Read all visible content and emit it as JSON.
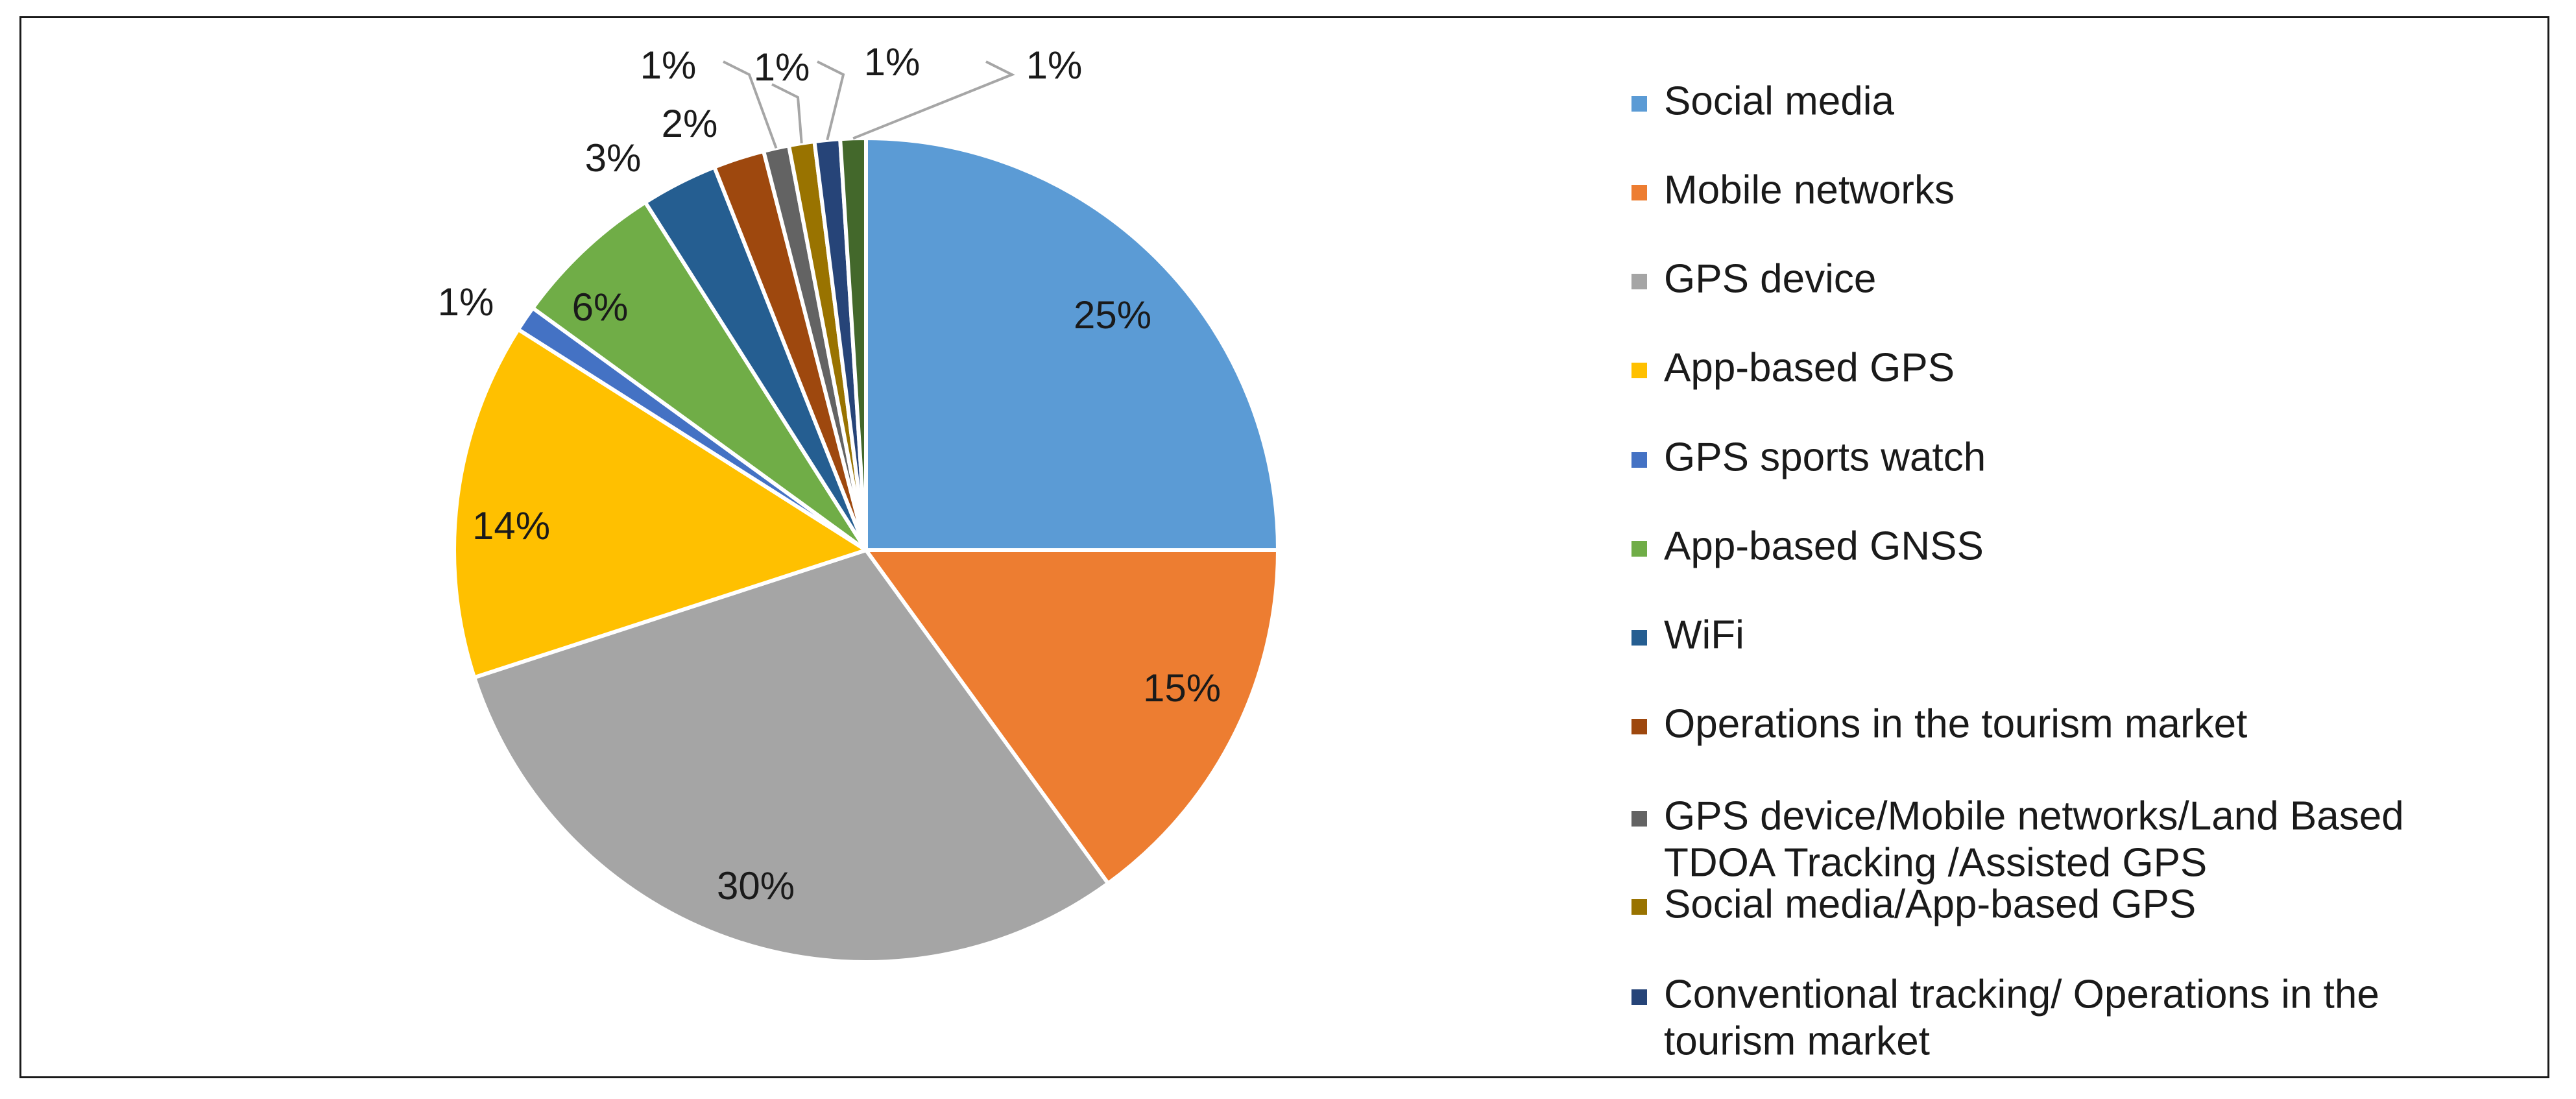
{
  "chart_data": {
    "type": "pie",
    "title": "",
    "slices": [
      {
        "label": "Social media",
        "value": 25,
        "display": "25%",
        "color": "#5B9BD5",
        "label_lines": [
          "Social media"
        ]
      },
      {
        "label": "Mobile networks",
        "value": 15,
        "display": "15%",
        "color": "#ED7D31",
        "label_lines": [
          "Mobile networks"
        ]
      },
      {
        "label": "GPS device",
        "value": 30,
        "display": "30%",
        "color": "#A5A5A5",
        "label_lines": [
          "GPS device"
        ]
      },
      {
        "label": "App-based GPS",
        "value": 14,
        "display": "14%",
        "color": "#FFC000",
        "label_lines": [
          "App-based GPS"
        ]
      },
      {
        "label": "GPS sports watch",
        "value": 1,
        "display": "1%",
        "color": "#4472C4",
        "label_lines": [
          "GPS sports watch"
        ]
      },
      {
        "label": "App-based GNSS",
        "value": 6,
        "display": "6%",
        "color": "#70AD47",
        "label_lines": [
          "App-based GNSS"
        ]
      },
      {
        "label": " WiFi",
        "value": 3,
        "display": "3%",
        "color": "#255E91",
        "label_lines": [
          " WiFi"
        ]
      },
      {
        "label": "Operations in the tourism market",
        "value": 2,
        "display": "2%",
        "color": "#9E480E",
        "label_lines": [
          "Operations in the tourism market"
        ]
      },
      {
        "label": "GPS device/Mobile networks/Land Based TDOA Tracking /Assisted GPS",
        "value": 1,
        "display": "1%",
        "color": "#636363",
        "label_lines": [
          "GPS device/Mobile networks/Land Based",
          "TDOA Tracking /Assisted GPS"
        ]
      },
      {
        "label": "Social media/App-based GPS",
        "value": 1,
        "display": "1%",
        "color": "#997300",
        "label_lines": [
          "Social media/App-based GPS"
        ]
      },
      {
        "label": "Conventional tracking/ Operations in the tourism market",
        "value": 1,
        "display": "1%",
        "color": "#264478",
        "label_lines": [
          "Conventional tracking/ Operations in the",
          "tourism market"
        ]
      },
      {
        "label": "",
        "value": 1,
        "display": "1%",
        "color": "#43682B",
        "label_lines": []
      }
    ]
  }
}
